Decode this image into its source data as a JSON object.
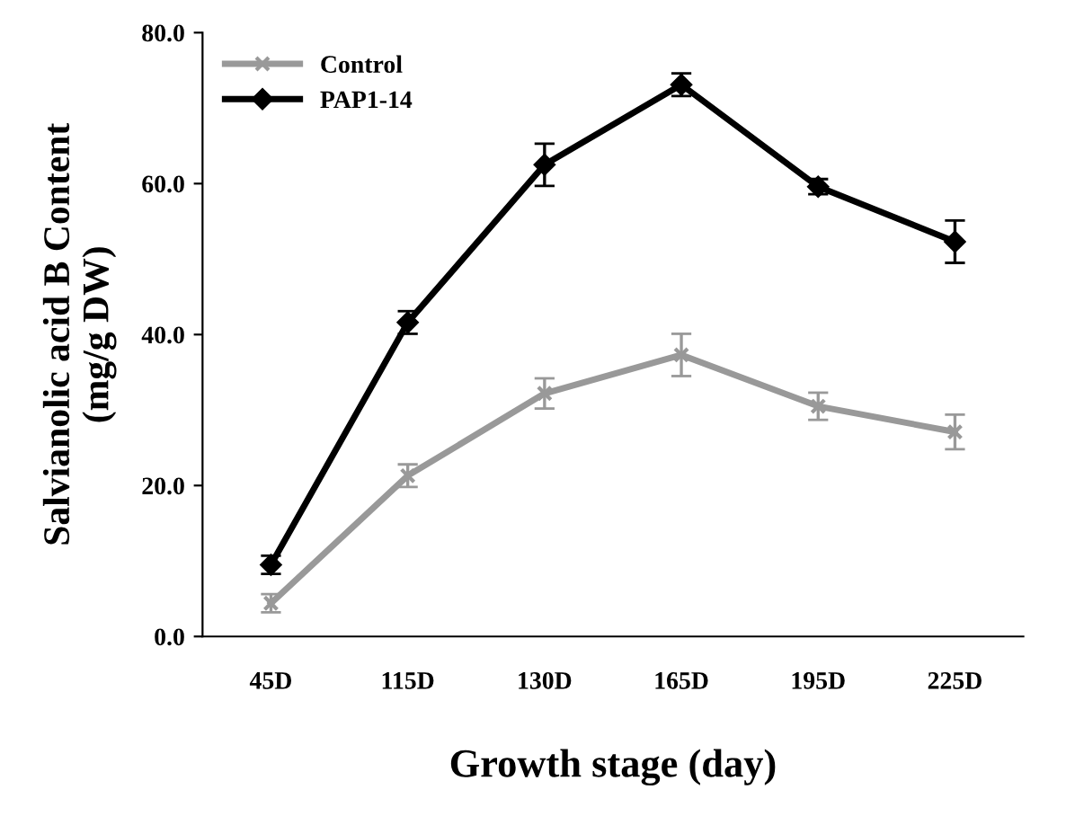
{
  "chart_data": {
    "type": "line",
    "xlabel": "Growth stage (day)",
    "ylabel": "Salvianolic acid B Content\n(mg/g DW)",
    "categories": [
      "45D",
      "115D",
      "130D",
      "165D",
      "195D",
      "225D"
    ],
    "series": [
      {
        "name": "Control",
        "color": "#999999",
        "marker": "cross",
        "values": [
          4.4,
          21.3,
          32.2,
          37.3,
          30.5,
          27.1
        ],
        "errors": [
          1.2,
          1.5,
          2.0,
          2.8,
          1.8,
          2.3
        ]
      },
      {
        "name": "PAP1-14",
        "color": "#000000",
        "marker": "diamond",
        "values": [
          9.5,
          41.6,
          62.5,
          73.1,
          59.6,
          52.3
        ],
        "errors": [
          1.2,
          1.5,
          2.8,
          1.5,
          1.0,
          2.8
        ]
      }
    ],
    "ylim": [
      0,
      80
    ],
    "yticks": [
      {
        "value": 0,
        "label": "0.0"
      },
      {
        "value": 20,
        "label": "20.0"
      },
      {
        "value": 40,
        "label": "40.0"
      },
      {
        "value": 60,
        "label": "60.0"
      },
      {
        "value": 80,
        "label": "80.0"
      }
    ],
    "grid": false,
    "legend": "top left",
    "line_style": "solid"
  }
}
